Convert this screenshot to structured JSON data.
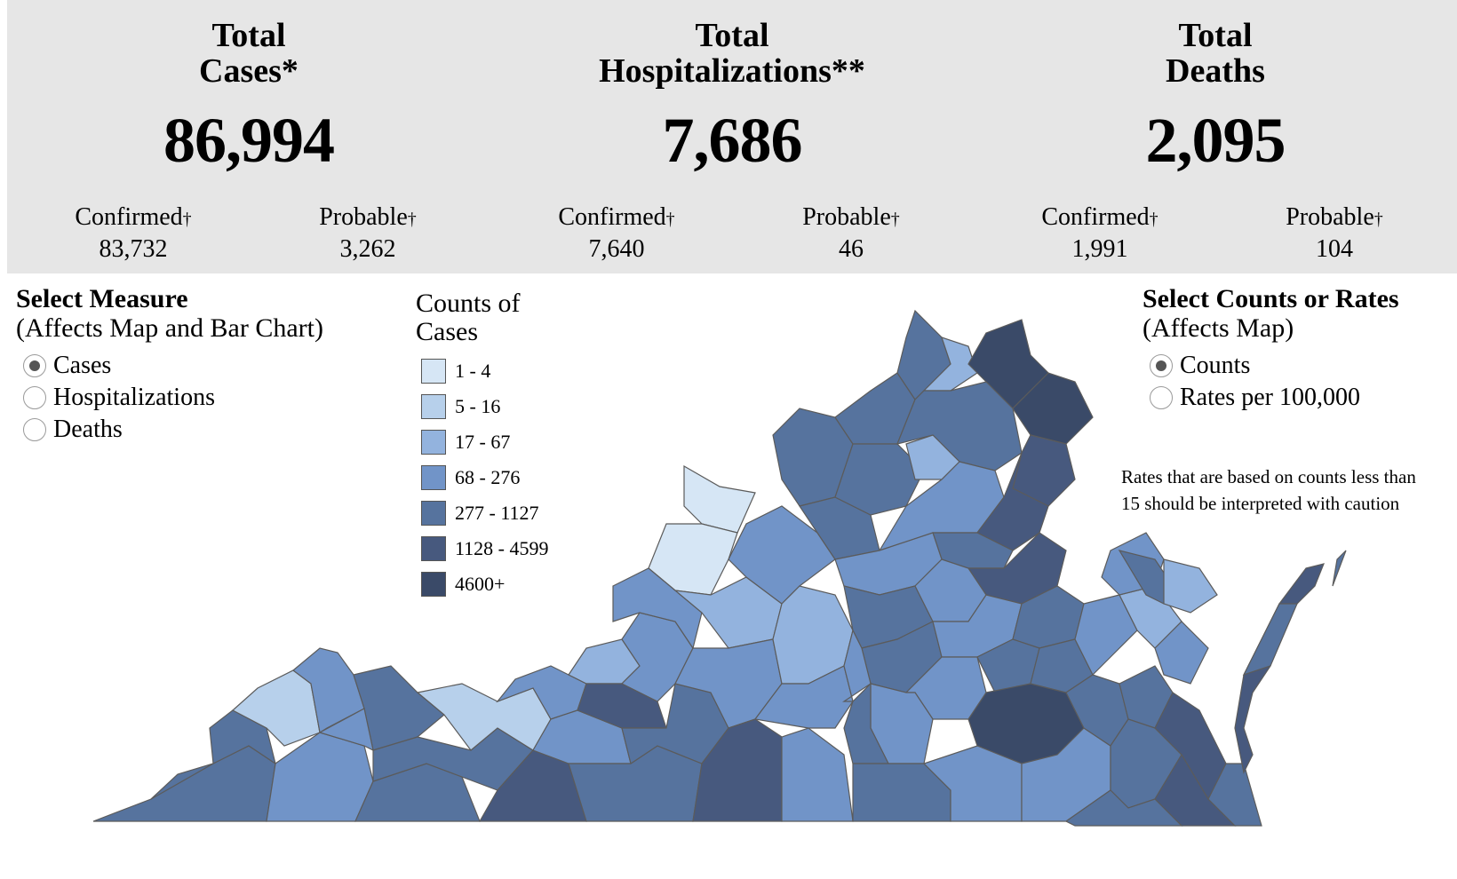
{
  "summary": {
    "cases": {
      "title_line1": "Total",
      "title_line2": "Cases*",
      "value": "86,994",
      "confirmed_label": "Confirmed",
      "confirmed_value": "83,732",
      "probable_label": "Probable",
      "probable_value": "3,262"
    },
    "hospitalizations": {
      "title_line1": "Total",
      "title_line2": "Hospitalizations**",
      "value": "7,686",
      "confirmed_label": "Confirmed",
      "confirmed_value": "7,640",
      "probable_label": "Probable",
      "probable_value": "46"
    },
    "deaths": {
      "title_line1": "Total",
      "title_line2": "Deaths",
      "value": "2,095",
      "confirmed_label": "Confirmed",
      "confirmed_value": "1,991",
      "probable_label": "Probable",
      "probable_value": "104"
    },
    "dagger": "†"
  },
  "measure_panel": {
    "title": "Select Measure",
    "subtitle": "(Affects Map and Bar Chart)",
    "options": [
      "Cases",
      "Hospitalizations",
      "Deaths"
    ],
    "selected": "Cases"
  },
  "legend": {
    "title_line1": "Counts of",
    "title_line2": "Cases",
    "items": [
      {
        "label": "1 - 4",
        "color": "#d6e6f5"
      },
      {
        "label": "5 - 16",
        "color": "#b7d0eb"
      },
      {
        "label": "17 - 67",
        "color": "#93b3de"
      },
      {
        "label": "68 - 276",
        "color": "#7194c8"
      },
      {
        "label": "277 - 1127",
        "color": "#56739e"
      },
      {
        "label": "1128 - 4599",
        "color": "#47597e"
      },
      {
        "label": "4600+",
        "color": "#3a4a68"
      }
    ]
  },
  "rate_panel": {
    "title": "Select Counts or Rates",
    "subtitle": "(Affects Map)",
    "options": [
      "Counts",
      "Rates per 100,000"
    ],
    "selected": "Counts"
  },
  "caution_note": "Rates that are based on counts less than 15 should be interpreted with caution"
}
